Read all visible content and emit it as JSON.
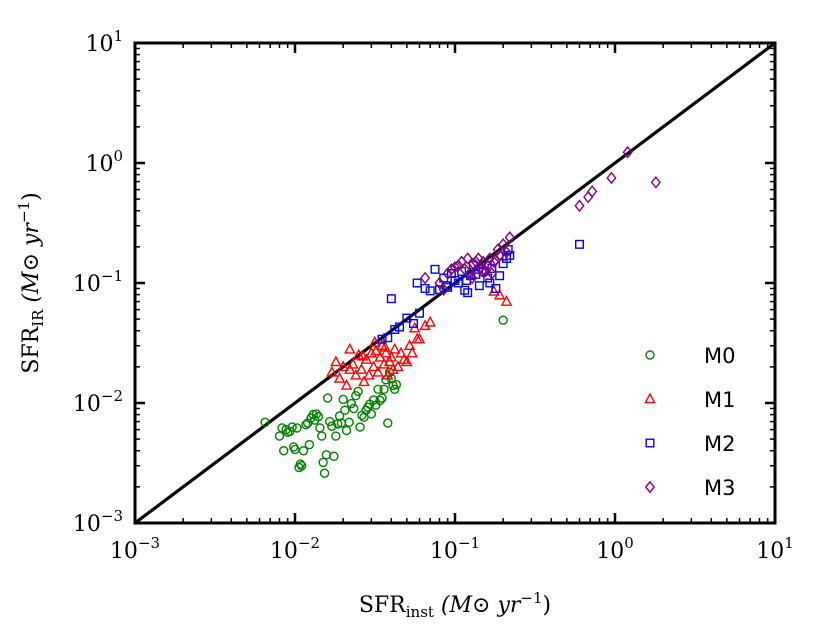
{
  "chart_data": {
    "type": "scatter",
    "title": "",
    "xlabel": {
      "main": "SFR",
      "sub": "inst",
      "unit": " (M⊙ yr",
      "unit_exp": "−1",
      "close": ")"
    },
    "ylabel": {
      "main": "SFR",
      "sub": "IR",
      "unit": " (M⊙ yr",
      "unit_exp": "−1",
      "close": ")"
    },
    "xscale": "log",
    "yscale": "log",
    "xlim": [
      0.001,
      10
    ],
    "ylim": [
      0.001,
      10
    ],
    "x_ticks": [
      {
        "base": "10",
        "exp": "−3",
        "value": 0.001
      },
      {
        "base": "10",
        "exp": "−2",
        "value": 0.01
      },
      {
        "base": "10",
        "exp": "−1",
        "value": 0.1
      },
      {
        "base": "10",
        "exp": "0",
        "value": 1
      },
      {
        "base": "10",
        "exp": "1",
        "value": 10
      }
    ],
    "y_ticks": [
      {
        "base": "10",
        "exp": "−3",
        "value": 0.001
      },
      {
        "base": "10",
        "exp": "−2",
        "value": 0.01
      },
      {
        "base": "10",
        "exp": "−1",
        "value": 0.1
      },
      {
        "base": "10",
        "exp": "0",
        "value": 1
      },
      {
        "base": "10",
        "exp": "1",
        "value": 10
      }
    ],
    "reference_line": {
      "type": "one-to-one",
      "from": [
        0.001,
        0.001
      ],
      "to": [
        10,
        10
      ],
      "color": "#000000"
    },
    "legend": {
      "position": "lower-right"
    },
    "series": [
      {
        "name": "M0",
        "marker": "circle",
        "color": "#008000",
        "points": [
          [
            0.0065,
            0.0069
          ],
          [
            0.008,
            0.0053
          ],
          [
            0.0083,
            0.0062
          ],
          [
            0.0085,
            0.004
          ],
          [
            0.0088,
            0.006
          ],
          [
            0.009,
            0.0057
          ],
          [
            0.0093,
            0.0058
          ],
          [
            0.0096,
            0.0063
          ],
          [
            0.0098,
            0.0043
          ],
          [
            0.01,
            0.0041
          ],
          [
            0.0103,
            0.0062
          ],
          [
            0.0106,
            0.0029
          ],
          [
            0.0108,
            0.0031
          ],
          [
            0.011,
            0.003
          ],
          [
            0.0113,
            0.004
          ],
          [
            0.0117,
            0.0066
          ],
          [
            0.012,
            0.0068
          ],
          [
            0.0123,
            0.0045
          ],
          [
            0.0126,
            0.0075
          ],
          [
            0.013,
            0.008
          ],
          [
            0.0133,
            0.0072
          ],
          [
            0.0136,
            0.0081
          ],
          [
            0.014,
            0.0077
          ],
          [
            0.0143,
            0.0062
          ],
          [
            0.0147,
            0.0053
          ],
          [
            0.015,
            0.0032
          ],
          [
            0.0153,
            0.0026
          ],
          [
            0.0157,
            0.0037
          ],
          [
            0.016,
            0.011
          ],
          [
            0.0165,
            0.007
          ],
          [
            0.017,
            0.0064
          ],
          [
            0.0175,
            0.0036
          ],
          [
            0.018,
            0.0053
          ],
          [
            0.0185,
            0.0067
          ],
          [
            0.019,
            0.0078
          ],
          [
            0.0195,
            0.0068
          ],
          [
            0.02,
            0.0107
          ],
          [
            0.0205,
            0.0087
          ],
          [
            0.021,
            0.0059
          ],
          [
            0.0218,
            0.0069
          ],
          [
            0.0225,
            0.0099
          ],
          [
            0.0233,
            0.009
          ],
          [
            0.024,
            0.0115
          ],
          [
            0.0248,
            0.0125
          ],
          [
            0.0255,
            0.0063
          ],
          [
            0.0262,
            0.0079
          ],
          [
            0.027,
            0.0076
          ],
          [
            0.0278,
            0.0087
          ],
          [
            0.0285,
            0.0092
          ],
          [
            0.0293,
            0.0098
          ],
          [
            0.03,
            0.0081
          ],
          [
            0.031,
            0.0106
          ],
          [
            0.032,
            0.0096
          ],
          [
            0.033,
            0.013
          ],
          [
            0.034,
            0.0105
          ],
          [
            0.035,
            0.011
          ],
          [
            0.036,
            0.013
          ],
          [
            0.037,
            0.0156
          ],
          [
            0.038,
            0.0068
          ],
          [
            0.039,
            0.018
          ],
          [
            0.04,
            0.016
          ],
          [
            0.041,
            0.014
          ],
          [
            0.042,
            0.013
          ],
          [
            0.043,
            0.0142
          ],
          [
            0.2,
            0.049
          ]
        ]
      },
      {
        "name": "M1",
        "marker": "triangle",
        "color": "#ff0000",
        "points": [
          [
            0.017,
            0.018
          ],
          [
            0.018,
            0.022
          ],
          [
            0.019,
            0.016
          ],
          [
            0.02,
            0.02
          ],
          [
            0.021,
            0.014
          ],
          [
            0.022,
            0.028
          ],
          [
            0.023,
            0.021
          ],
          [
            0.024,
            0.017
          ],
          [
            0.025,
            0.025
          ],
          [
            0.026,
            0.019
          ],
          [
            0.027,
            0.015
          ],
          [
            0.028,
            0.023
          ],
          [
            0.029,
            0.017
          ],
          [
            0.03,
            0.026
          ],
          [
            0.031,
            0.02
          ],
          [
            0.032,
            0.027
          ],
          [
            0.033,
            0.018
          ],
          [
            0.034,
            0.024
          ],
          [
            0.035,
            0.03
          ],
          [
            0.036,
            0.021
          ],
          [
            0.037,
            0.026
          ],
          [
            0.038,
            0.017
          ],
          [
            0.039,
            0.022
          ],
          [
            0.04,
            0.024
          ],
          [
            0.042,
            0.028
          ],
          [
            0.044,
            0.02
          ],
          [
            0.046,
            0.026
          ],
          [
            0.048,
            0.023
          ],
          [
            0.05,
            0.022
          ],
          [
            0.052,
            0.03
          ],
          [
            0.054,
            0.026
          ],
          [
            0.056,
            0.042
          ],
          [
            0.058,
            0.034
          ],
          [
            0.06,
            0.034
          ],
          [
            0.065,
            0.044
          ],
          [
            0.07,
            0.047
          ],
          [
            0.022,
            0.019
          ],
          [
            0.0265,
            0.0245
          ],
          [
            0.0315,
            0.032
          ],
          [
            0.0365,
            0.029
          ],
          [
            0.041,
            0.019
          ],
          [
            0.21,
            0.07
          ],
          [
            0.19,
            0.079
          ],
          [
            0.175,
            0.085
          ]
        ]
      },
      {
        "name": "M2",
        "marker": "square",
        "color": "#0000ff",
        "points": [
          [
            0.035,
            0.034
          ],
          [
            0.038,
            0.035
          ],
          [
            0.04,
            0.074
          ],
          [
            0.042,
            0.041
          ],
          [
            0.045,
            0.043
          ],
          [
            0.05,
            0.051
          ],
          [
            0.055,
            0.046
          ],
          [
            0.058,
            0.1
          ],
          [
            0.06,
            0.056
          ],
          [
            0.065,
            0.09
          ],
          [
            0.07,
            0.086
          ],
          [
            0.075,
            0.13
          ],
          [
            0.08,
            0.088
          ],
          [
            0.085,
            0.11
          ],
          [
            0.09,
            0.092
          ],
          [
            0.095,
            0.12
          ],
          [
            0.1,
            0.105
          ],
          [
            0.105,
            0.1
          ],
          [
            0.11,
            0.125
          ],
          [
            0.115,
            0.087
          ],
          [
            0.12,
            0.083
          ],
          [
            0.125,
            0.115
          ],
          [
            0.13,
            0.14
          ],
          [
            0.135,
            0.118
          ],
          [
            0.14,
            0.13
          ],
          [
            0.15,
            0.125
          ],
          [
            0.16,
            0.11
          ],
          [
            0.17,
            0.132
          ],
          [
            0.18,
            0.09
          ],
          [
            0.19,
            0.115
          ],
          [
            0.2,
            0.145
          ],
          [
            0.21,
            0.16
          ],
          [
            0.22,
            0.17
          ],
          [
            0.215,
            0.19
          ],
          [
            0.6,
            0.21
          ],
          [
            0.088,
            0.095
          ],
          [
            0.118,
            0.105
          ],
          [
            0.142,
            0.095
          ],
          [
            0.165,
            0.1
          ]
        ]
      },
      {
        "name": "M3",
        "marker": "diamond",
        "color": "#800080",
        "points": [
          [
            0.065,
            0.11
          ],
          [
            0.08,
            0.1
          ],
          [
            0.085,
            0.088
          ],
          [
            0.09,
            0.12
          ],
          [
            0.095,
            0.13
          ],
          [
            0.1,
            0.135
          ],
          [
            0.105,
            0.14
          ],
          [
            0.11,
            0.15
          ],
          [
            0.115,
            0.13
          ],
          [
            0.12,
            0.16
          ],
          [
            0.125,
            0.12
          ],
          [
            0.13,
            0.145
          ],
          [
            0.135,
            0.15
          ],
          [
            0.14,
            0.16
          ],
          [
            0.145,
            0.135
          ],
          [
            0.15,
            0.15
          ],
          [
            0.155,
            0.125
          ],
          [
            0.16,
            0.14
          ],
          [
            0.165,
            0.16
          ],
          [
            0.17,
            0.12
          ],
          [
            0.175,
            0.15
          ],
          [
            0.18,
            0.155
          ],
          [
            0.185,
            0.19
          ],
          [
            0.19,
            0.17
          ],
          [
            0.2,
            0.21
          ],
          [
            0.21,
            0.18
          ],
          [
            0.22,
            0.24
          ],
          [
            0.6,
            0.44
          ],
          [
            0.68,
            0.52
          ],
          [
            0.72,
            0.58
          ],
          [
            0.95,
            0.75
          ],
          [
            1.2,
            1.23
          ],
          [
            1.8,
            0.69
          ],
          [
            0.128,
            0.11
          ],
          [
            0.148,
            0.125
          ]
        ]
      }
    ]
  }
}
